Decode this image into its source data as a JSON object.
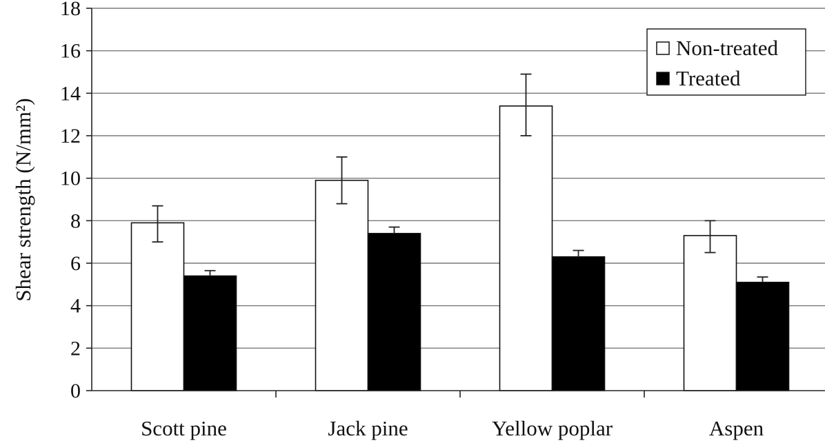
{
  "chart_data": {
    "type": "bar",
    "categories": [
      "Scott pine",
      "Jack pine",
      "Yellow poplar",
      "Aspen"
    ],
    "series": [
      {
        "name": "Non-treated",
        "color": "#ffffff",
        "values": [
          7.9,
          9.9,
          13.4,
          7.3
        ],
        "err_low": [
          7.0,
          8.8,
          12.0,
          6.5
        ],
        "err_high": [
          8.7,
          11.0,
          14.9,
          8.0
        ]
      },
      {
        "name": "Treated",
        "color": "#000000",
        "values": [
          5.4,
          7.4,
          6.3,
          5.1
        ],
        "err_low": [
          5.4,
          7.4,
          6.3,
          5.1
        ],
        "err_high": [
          5.65,
          7.7,
          6.6,
          5.35
        ]
      }
    ],
    "title": "",
    "xlabel": "",
    "ylabel": "Shear strength (N/mm²)",
    "ylim": [
      0,
      18
    ],
    "yticks": [
      "0",
      "2",
      "4",
      "6",
      "8",
      "10",
      "12",
      "14",
      "16",
      "18"
    ],
    "grid": true,
    "legend_position": "top-right"
  }
}
